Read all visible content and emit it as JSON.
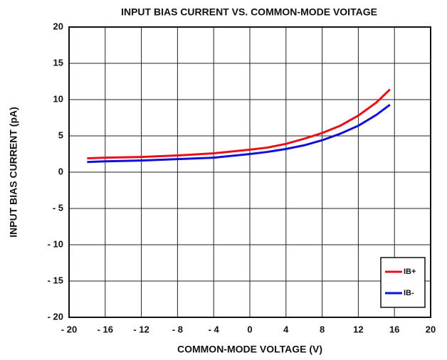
{
  "chart_data": {
    "type": "line",
    "title": "INPUT BIAS CURRENT VS. COMMON-MODE VOITAGE",
    "x_label": "COMMON-MODE VOLTAGE (V)",
    "y_label": "INPUT BIAS CURRENT (pA)",
    "x": [
      -18,
      -16,
      -12,
      -8,
      -4,
      0,
      2,
      4,
      6,
      8,
      10,
      12,
      14,
      15.5
    ],
    "series": [
      {
        "name": "IB+",
        "color": "#e8101a",
        "values": [
          1.9,
          2.0,
          2.1,
          2.3,
          2.6,
          3.1,
          3.4,
          3.9,
          4.6,
          5.4,
          6.4,
          7.8,
          9.6,
          11.4
        ]
      },
      {
        "name": "IB-",
        "color": "#1010d8",
        "values": [
          1.4,
          1.5,
          1.6,
          1.8,
          2.0,
          2.5,
          2.8,
          3.2,
          3.7,
          4.4,
          5.3,
          6.4,
          7.9,
          9.3
        ]
      }
    ],
    "xlim": [
      -20,
      20
    ],
    "xticks": [
      {
        "value": -20,
        "label": "- 20"
      },
      {
        "value": -16,
        "label": "- 16"
      },
      {
        "value": -12,
        "label": "- 12"
      },
      {
        "value": -8,
        "label": "- 8"
      },
      {
        "value": -4,
        "label": "- 4"
      },
      0,
      4,
      8,
      12,
      16,
      20
    ],
    "ylim": [
      -20,
      20
    ],
    "yticks": [
      {
        "value": -20,
        "label": "- 20"
      },
      {
        "value": -15,
        "label": "- 15"
      },
      {
        "value": -10,
        "label": "- 10"
      },
      {
        "value": -5,
        "label": "- 5"
      },
      0,
      5,
      10,
      15,
      20
    ],
    "grid": true,
    "legend": "lower right"
  }
}
